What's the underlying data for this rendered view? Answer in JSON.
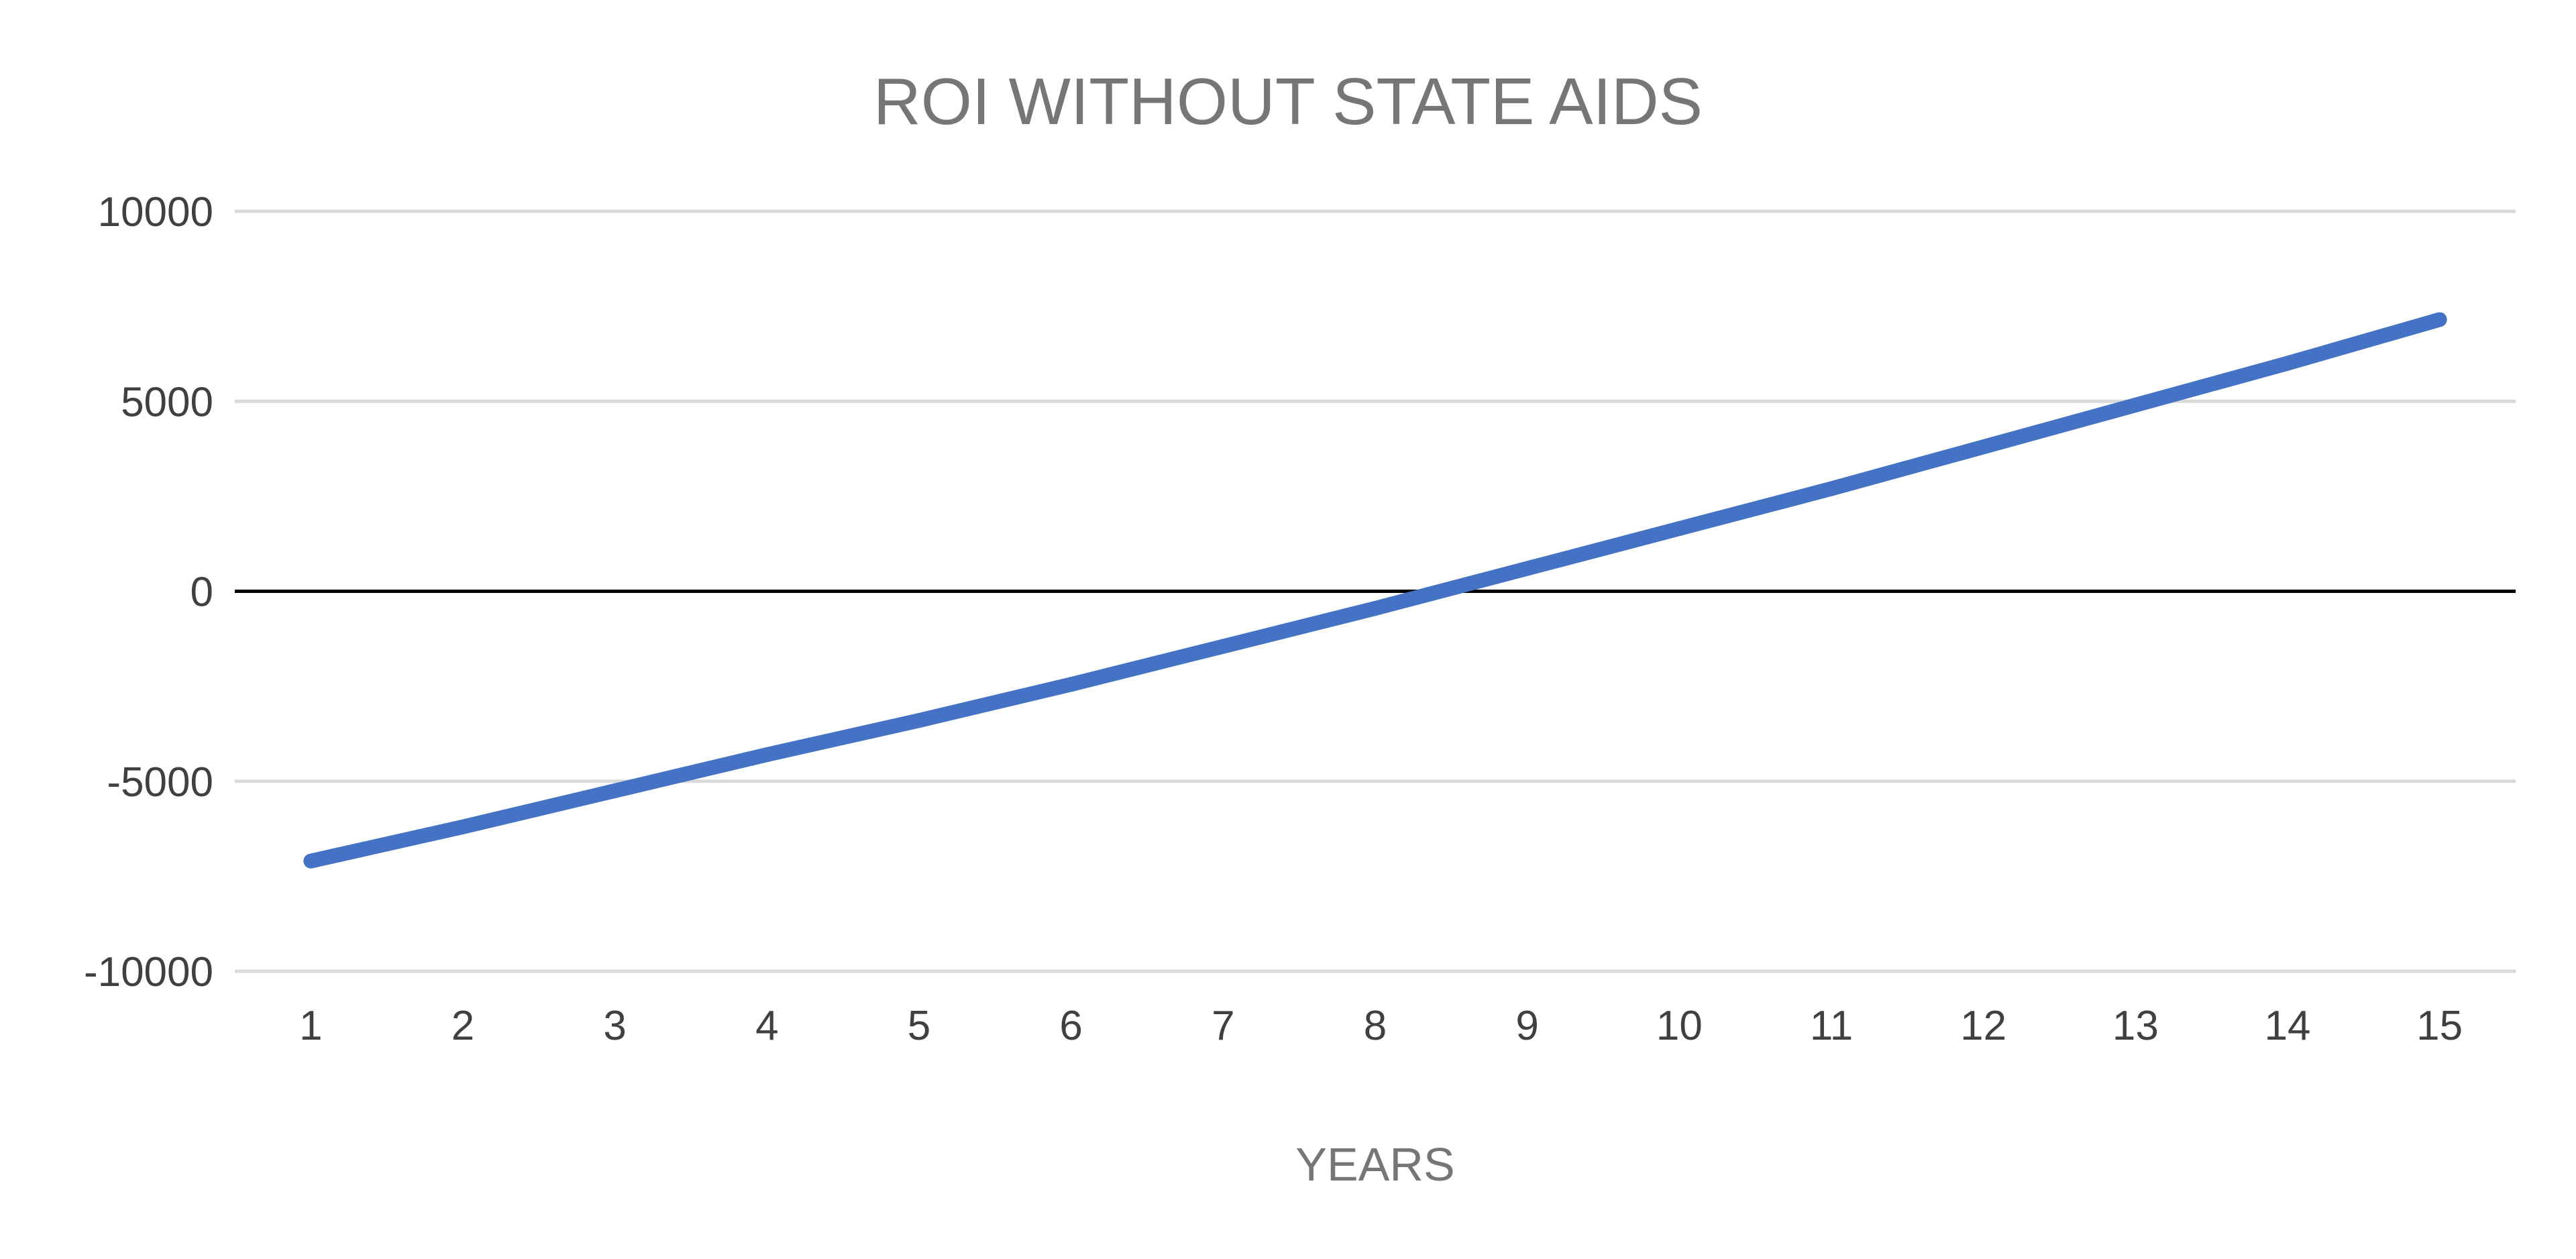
{
  "chart_data": {
    "type": "line",
    "title": "ROI WITHOUT STATE AIDS",
    "xlabel": "YEARS",
    "ylabel": "",
    "categories": [
      "1",
      "2",
      "3",
      "4",
      "5",
      "6",
      "7",
      "8",
      "9",
      "10",
      "11",
      "12",
      "13",
      "14",
      "15"
    ],
    "series": [
      {
        "name": "",
        "values": [
          -7100,
          -6200,
          -5250,
          -4300,
          -3400,
          -2450,
          -1450,
          -450,
          600,
          1650,
          2700,
          3800,
          4900,
          6000,
          7150
        ]
      }
    ],
    "ylim": [
      -10000,
      10000
    ],
    "y_ticks": [
      "10000",
      "5000",
      "0",
      "-5000",
      "-10000"
    ],
    "y_tick_values": [
      10000,
      5000,
      0,
      -5000,
      -10000
    ],
    "grid": true,
    "legend": "none",
    "colors": {
      "series": "#4472C4",
      "gridline": "#D9D9D9",
      "zero_line": "#000000",
      "title": "#767676",
      "tick_labels": "#404040"
    }
  }
}
